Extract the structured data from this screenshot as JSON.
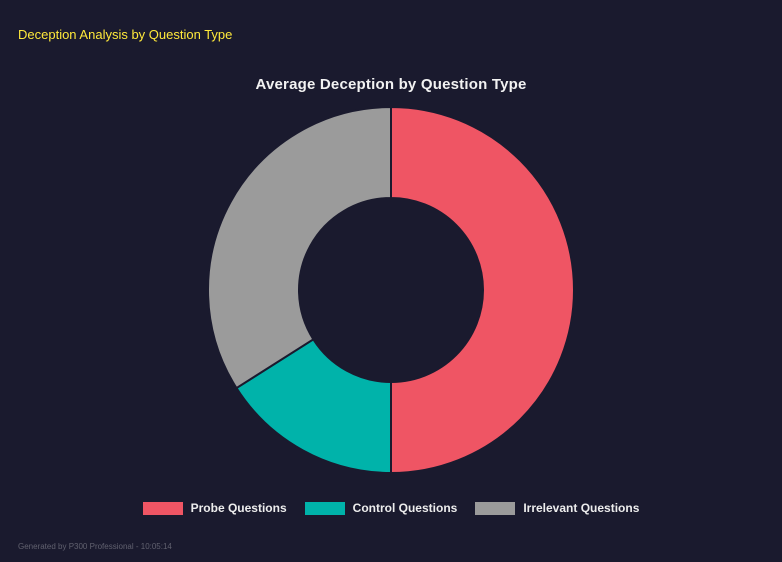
{
  "page": {
    "title": "Deception Analysis by Question Type",
    "footer_text": "Generated by P300 Professional - 10:05:14",
    "colors": {
      "background": "#1a1a2e",
      "page_title": "#ffe93b",
      "footer": "#61616f",
      "chart_title": "#f2f2f2",
      "legend_text": "#ededed"
    }
  },
  "chart_data": {
    "type": "pie",
    "variant": "donut",
    "title": "Average Deception by Question Type",
    "categories": [
      "Probe Questions",
      "Control Questions",
      "Irrelevant Questions"
    ],
    "values": [
      50,
      16,
      34
    ],
    "unit": "percent (estimated from arc angles)",
    "colors": [
      "#ef5564",
      "#00b3aa",
      "#9b9b9b"
    ],
    "start_angle_deg": 0,
    "direction": "clockwise",
    "inner_radius_ratio": 0.5,
    "slice_border_color": "#1a1a2e",
    "legend_position": "bottom",
    "legend": [
      "Probe Questions",
      "Control Questions",
      "Irrelevant Questions"
    ]
  }
}
